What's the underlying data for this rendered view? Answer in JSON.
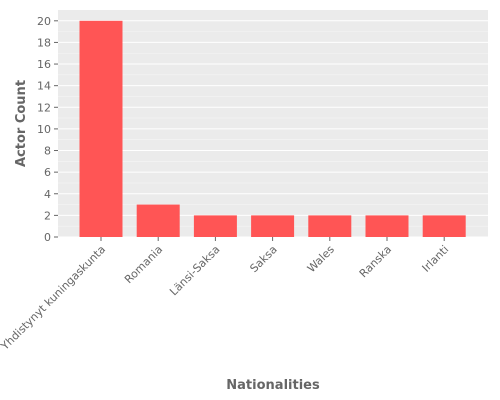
{
  "chart_data": {
    "type": "bar",
    "categories": [
      "Yhdistynyt kuningaskunta",
      "Romania",
      "Länsi-Saksa",
      "Saksa",
      "Wales",
      "Ranska",
      "Irlanti"
    ],
    "values": [
      20,
      3,
      2,
      2,
      2,
      2,
      2
    ],
    "title": "",
    "xlabel": "Nationalities",
    "ylabel": "Actor Count",
    "ylim": [
      0,
      21
    ],
    "yticks": [
      0,
      2,
      4,
      6,
      8,
      10,
      12,
      14,
      16,
      18,
      20
    ],
    "grid": true,
    "legend": "none",
    "colors": {
      "bar": "#ff5555",
      "panel": "#ebebeb",
      "grid": "#ffffff",
      "text": "#666666"
    }
  }
}
